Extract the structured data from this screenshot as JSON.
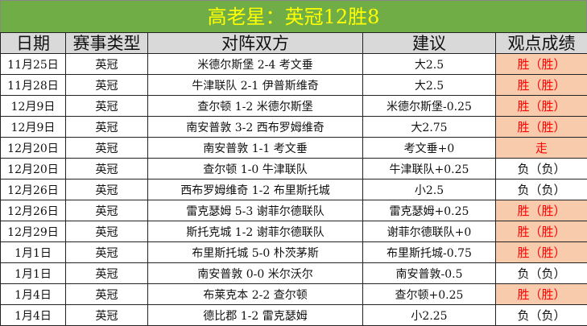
{
  "title": "高老星：英冠12胜8",
  "columns": [
    "日期",
    "赛事类型",
    "对阵双方",
    "建议",
    "观点成绩"
  ],
  "colors": {
    "title_bg": "#70ad47",
    "title_text": "#ffff00",
    "header_bg": "#d9d9d9",
    "win_bg": "#f8cbad",
    "win_text": "#ff0000"
  },
  "rows": [
    {
      "date": "11月25日",
      "league": "英冠",
      "match": "米德尔斯堡 2-4 考文垂",
      "tip": "大2.5",
      "result": "胜（胜）",
      "highlight": true
    },
    {
      "date": "11月28日",
      "league": "英冠",
      "match": "牛津联队 2-1 伊普斯维奇",
      "tip": "大2.5",
      "result": "胜（胜）",
      "highlight": true
    },
    {
      "date": "12月9日",
      "league": "英冠",
      "match": "查尔顿 1-2 米德尔斯堡",
      "tip": "米德尔斯堡-0.25",
      "result": "胜（胜）",
      "highlight": true
    },
    {
      "date": "12月9日",
      "league": "英冠",
      "match": "南安普敦 3-2 西布罗姆维奇",
      "tip": "大2.75",
      "result": "胜（胜）",
      "highlight": true
    },
    {
      "date": "12月20日",
      "league": "英冠",
      "match": "南安普敦 1-1 考文垂",
      "tip": "考文垂+0",
      "result": "走",
      "highlight": true
    },
    {
      "date": "12月20日",
      "league": "英冠",
      "match": "查尔顿 1-0 牛津联队",
      "tip": "牛津联队+0.25",
      "result": "负（负）",
      "highlight": false
    },
    {
      "date": "12月26日",
      "league": "英冠",
      "match": "西布罗姆维奇 1-2 布里斯托城",
      "tip": "小2.5",
      "result": "负（负）",
      "highlight": false
    },
    {
      "date": "12月26日",
      "league": "英冠",
      "match": "雷克瑟姆 5-3 谢菲尔德联队",
      "tip": "雷克瑟姆+0.25",
      "result": "胜（胜）",
      "highlight": true
    },
    {
      "date": "12月29日",
      "league": "英冠",
      "match": "斯托克城 1-2 谢菲尔德联队",
      "tip": "谢菲尔德联队+0",
      "result": "胜（胜）",
      "highlight": true
    },
    {
      "date": "1月1日",
      "league": "英冠",
      "match": "布里斯托城 5-0 朴茨茅斯",
      "tip": "布里斯托城-0.75",
      "result": "胜（胜）",
      "highlight": true
    },
    {
      "date": "1月1日",
      "league": "英冠",
      "match": "南安普敦 0-0 米尔沃尔",
      "tip": "南安普敦-0.5",
      "result": "负（负）",
      "highlight": false
    },
    {
      "date": "1月4日",
      "league": "英冠",
      "match": "布莱克本 2-2 查尔顿",
      "tip": "查尔顿+0.25",
      "result": "胜（胜）",
      "highlight": true
    },
    {
      "date": "1月4日",
      "league": "英冠",
      "match": "德比郡 1-2 雷克瑟姆",
      "tip": "小2.25",
      "result": "负（负）",
      "highlight": false
    }
  ]
}
